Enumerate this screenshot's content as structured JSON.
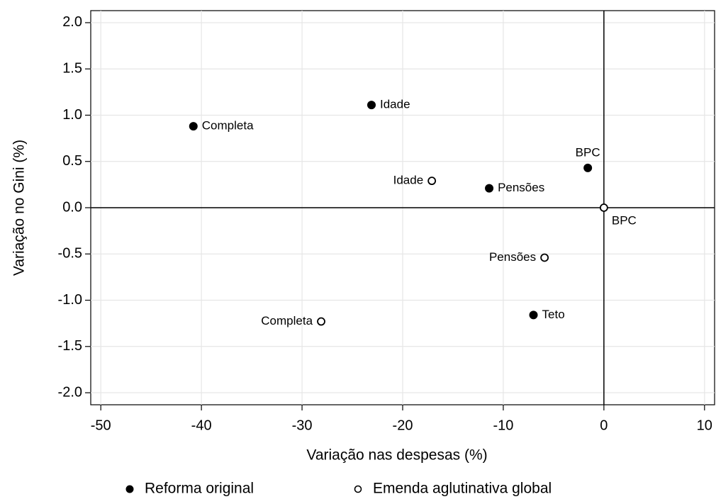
{
  "chart_data": {
    "type": "scatter",
    "xlabel": "Variação nas despesas (%)",
    "ylabel": "Variação no Gini (%)",
    "xlim": [
      -51,
      11
    ],
    "ylim": [
      -2.13,
      2.13
    ],
    "xticks": [
      -50,
      -40,
      -30,
      -20,
      -10,
      0,
      10
    ],
    "yticks": [
      {
        "value": 2.0,
        "label": "2.0"
      },
      1.5,
      {
        "value": 1.0,
        "label": "1.0"
      },
      0.5,
      {
        "value": 0.0,
        "label": "0.0"
      },
      -0.5,
      {
        "value": -1.0,
        "label": "-1.0"
      },
      -1.5,
      {
        "value": -2.0,
        "label": "-2.0"
      }
    ],
    "grid": true,
    "legend": "bottom",
    "series": [
      {
        "name": "Reforma original",
        "color": "#000000",
        "marker": "filled",
        "labels": [
          "Completa",
          "Idade",
          "BPC",
          "Pensões",
          "Teto"
        ],
        "x": [
          -40.8,
          -23.1,
          -1.6,
          -11.4,
          -7.0
        ],
        "values": [
          0.88,
          1.11,
          0.43,
          0.21,
          -1.16
        ]
      },
      {
        "name": "Emenda aglutinativa global",
        "color": "#000000",
        "marker": "hollow",
        "labels": [
          "Completa",
          "Idade",
          "BPC",
          "Pensões"
        ],
        "x": [
          -28.1,
          -17.1,
          0,
          -5.9
        ],
        "values": [
          -1.23,
          0.29,
          0,
          -0.54
        ]
      }
    ]
  }
}
